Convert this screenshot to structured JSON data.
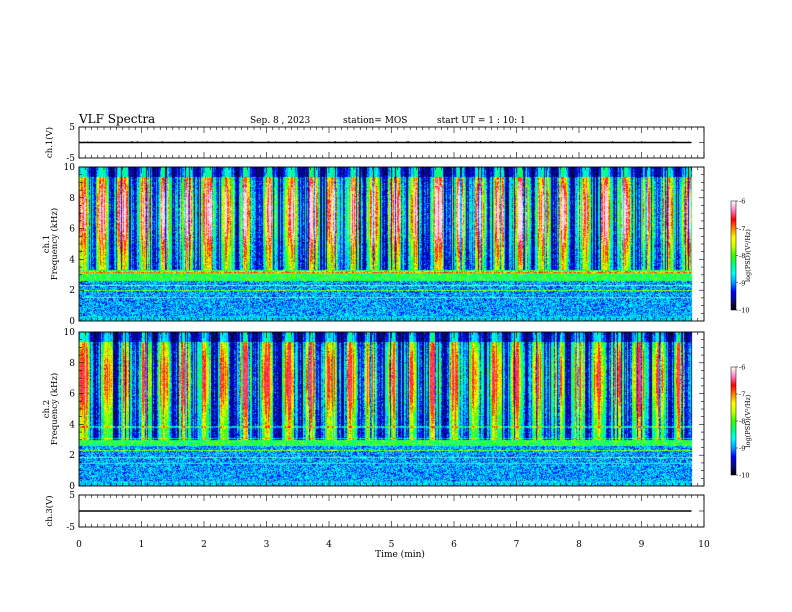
{
  "header": {
    "title": "VLF Spectra",
    "date": "Sep. 8 , 2023",
    "station": "station= MOS",
    "start": "start  UT =   1 : 10: 1"
  },
  "colors": {
    "colormap": [
      "#000000",
      "#0a0a8c",
      "#0000ff",
      "#00a0ff",
      "#00ffff",
      "#00ff80",
      "#33ff00",
      "#c8ff00",
      "#ffff00",
      "#ff8000",
      "#ff0000",
      "#ff80c0",
      "#ffffff"
    ],
    "trace": "#000000"
  },
  "chart_data": [
    {
      "type": "line",
      "name": "ch1-waveform",
      "ylabel": "ch.1(V)",
      "ylim": [
        -5,
        5
      ],
      "yticks": [
        "5",
        "-5"
      ],
      "xlim": [
        0,
        10
      ],
      "trace_level": 0
    },
    {
      "type": "heatmap",
      "name": "ch1-spectrogram",
      "ylabel": "ch.1\nFrequency (kHz)",
      "ylim": [
        0,
        10
      ],
      "yticks": [
        "0",
        "2",
        "4",
        "6",
        "8",
        "10"
      ],
      "xlim": [
        0,
        10
      ],
      "data_end_min": 9.8,
      "colorbar": {
        "label": "log(PSD)(V²/Hz)",
        "range": [
          -10,
          -6
        ],
        "ticks": [
          "-6",
          "-7",
          "-8",
          "-9",
          "-10"
        ]
      },
      "profile": {
        "low_band_khz": [
          0.3,
          3.3
        ],
        "peak_log_psd": -6.2,
        "burst_density": 0.55
      }
    },
    {
      "type": "heatmap",
      "name": "ch2-spectrogram",
      "ylabel": "ch.2\nFrequency (kHz)",
      "ylim": [
        0,
        10
      ],
      "yticks": [
        "0",
        "2",
        "4",
        "6",
        "8",
        "10"
      ],
      "xlim": [
        0,
        10
      ],
      "data_end_min": 9.8,
      "colorbar": {
        "label": "log(PSD)(V²/Hz)",
        "range": [
          -10,
          -6
        ],
        "ticks": [
          "-6",
          "-7",
          "-8",
          "-9",
          "-10"
        ]
      },
      "profile": {
        "low_band_khz": [
          0.3,
          3.0
        ],
        "peak_log_psd": -6.6,
        "burst_density": 0.4
      }
    },
    {
      "type": "line",
      "name": "ch3-waveform",
      "ylabel": "ch.3(V)",
      "ylim": [
        -5,
        5
      ],
      "yticks": [
        "5",
        "-5"
      ],
      "xlim": [
        0,
        10
      ],
      "trace_level": 0
    }
  ],
  "xaxis": {
    "label": "Time  (min)",
    "ticks": [
      "0",
      "1",
      "2",
      "3",
      "4",
      "5",
      "6",
      "7",
      "8",
      "9",
      "10"
    ]
  }
}
